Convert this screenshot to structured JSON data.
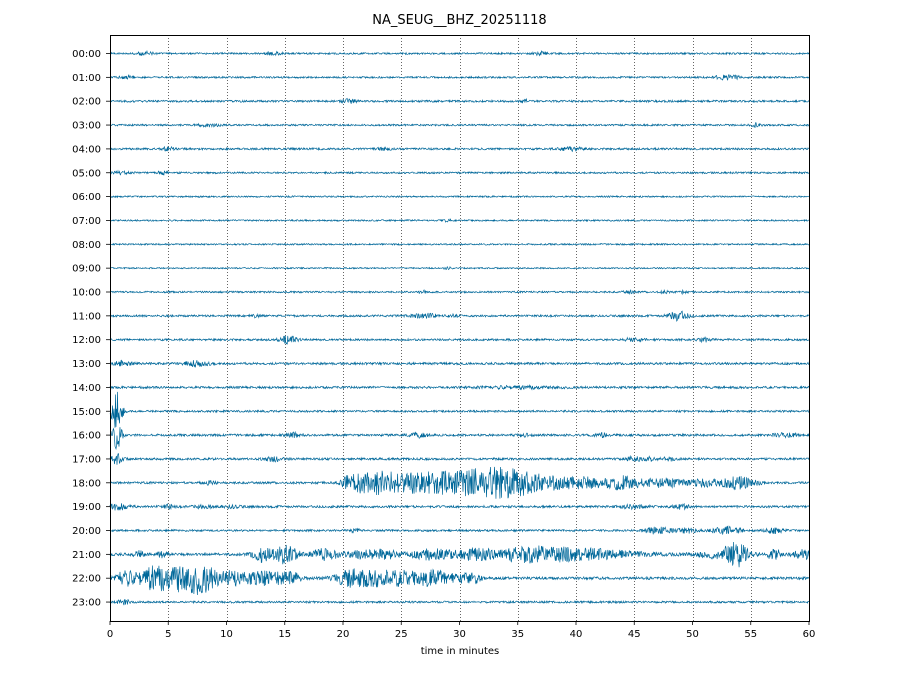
{
  "chart_data": {
    "type": "line",
    "title": "NA_SEUG__BHZ_20251118",
    "xlabel": "time in minutes",
    "ylabel": "",
    "xlim": [
      0,
      60
    ],
    "x_ticks": [
      0,
      5,
      10,
      15,
      20,
      25,
      30,
      35,
      40,
      45,
      50,
      55,
      60
    ],
    "x_tick_labels": [
      "0",
      "5",
      "10",
      "15",
      "20",
      "25",
      "30",
      "35",
      "40",
      "45",
      "50",
      "55",
      "60"
    ],
    "y_tick_labels": [
      "00:00",
      "01:00",
      "02:00",
      "03:00",
      "04:00",
      "05:00",
      "06:00",
      "07:00",
      "08:00",
      "09:00",
      "10:00",
      "11:00",
      "12:00",
      "13:00",
      "14:00",
      "15:00",
      "16:00",
      "17:00",
      "18:00",
      "19:00",
      "20:00",
      "21:00",
      "22:00",
      "23:00"
    ],
    "grid": "vertical dotted lines at each x tick",
    "trace_color": "#00689a",
    "series": [
      {
        "hour": "00:00",
        "noise": 0.08,
        "events": [
          [
            3,
            0.5,
            0.15
          ],
          [
            14,
            0.5,
            0.12
          ],
          [
            37,
            0.4,
            0.15
          ]
        ]
      },
      {
        "hour": "01:00",
        "noise": 0.08,
        "events": [
          [
            1.5,
            0.5,
            0.12
          ],
          [
            53,
            0.8,
            0.2
          ]
        ]
      },
      {
        "hour": "02:00",
        "noise": 0.09,
        "events": [
          [
            20.5,
            0.4,
            0.2
          ],
          [
            35.5,
            0.3,
            0.15
          ]
        ]
      },
      {
        "hour": "03:00",
        "noise": 0.08,
        "events": [
          [
            8.5,
            0.6,
            0.15
          ],
          [
            55.5,
            0.3,
            0.15
          ]
        ]
      },
      {
        "hour": "04:00",
        "noise": 0.09,
        "events": [
          [
            5,
            0.4,
            0.15
          ],
          [
            23.5,
            0.4,
            0.12
          ],
          [
            39.5,
            0.6,
            0.2
          ]
        ]
      },
      {
        "hour": "05:00",
        "noise": 0.08,
        "events": [
          [
            1,
            0.5,
            0.12
          ],
          [
            4.5,
            0.3,
            0.15
          ]
        ]
      },
      {
        "hour": "06:00",
        "noise": 0.07,
        "events": []
      },
      {
        "hour": "07:00",
        "noise": 0.07,
        "events": [
          [
            29,
            0.3,
            0.1
          ]
        ]
      },
      {
        "hour": "08:00",
        "noise": 0.07,
        "events": []
      },
      {
        "hour": "09:00",
        "noise": 0.06,
        "events": [
          [
            29,
            0.2,
            0.1
          ]
        ]
      },
      {
        "hour": "10:00",
        "noise": 0.08,
        "events": [
          [
            27,
            0.3,
            0.12
          ],
          [
            44.5,
            0.3,
            0.12
          ],
          [
            47.5,
            0.3,
            0.1
          ],
          [
            49,
            0.3,
            0.12
          ]
        ]
      },
      {
        "hour": "11:00",
        "noise": 0.09,
        "events": [
          [
            12.5,
            0.3,
            0.1
          ],
          [
            27,
            0.8,
            0.2
          ],
          [
            29.5,
            0.3,
            0.1
          ],
          [
            48.8,
            0.6,
            0.4
          ]
        ]
      },
      {
        "hour": "12:00",
        "noise": 0.09,
        "events": [
          [
            15.3,
            0.5,
            0.35
          ],
          [
            45,
            0.5,
            0.2
          ],
          [
            51,
            0.4,
            0.2
          ]
        ]
      },
      {
        "hour": "13:00",
        "noise": 0.1,
        "events": [
          [
            1,
            0.6,
            0.2
          ],
          [
            7.5,
            0.7,
            0.25
          ]
        ]
      },
      {
        "hour": "14:00",
        "noise": 0.1,
        "events": [
          [
            35,
            2.5,
            0.1
          ]
        ]
      },
      {
        "hour": "15:00",
        "noise": 0.09,
        "events": [
          [
            0.6,
            0.3,
            2.0
          ]
        ]
      },
      {
        "hour": "16:00",
        "noise": 0.1,
        "events": [
          [
            0.6,
            0.3,
            1.2
          ],
          [
            15.8,
            0.4,
            0.2
          ],
          [
            26.5,
            0.5,
            0.2
          ],
          [
            35.5,
            0.4,
            0.12
          ],
          [
            42,
            0.4,
            0.2
          ],
          [
            58,
            0.8,
            0.15
          ]
        ]
      },
      {
        "hour": "17:00",
        "noise": 0.1,
        "events": [
          [
            0.6,
            0.3,
            0.5
          ],
          [
            14,
            0.5,
            0.2
          ],
          [
            45,
            0.5,
            0.2
          ],
          [
            46.5,
            0.3,
            0.2
          ],
          [
            48,
            0.4,
            0.15
          ]
        ]
      },
      {
        "hour": "18:00",
        "noise": 0.1,
        "events": [
          [
            8.5,
            0.4,
            0.15
          ],
          [
            20.2,
            0.3,
            0.3
          ],
          [
            21,
            0.5,
            0.4
          ],
          [
            22.5,
            1.2,
            0.7
          ],
          [
            24.5,
            1.8,
            0.6
          ],
          [
            26.5,
            0.8,
            0.35
          ],
          [
            29,
            2.0,
            0.9
          ],
          [
            32,
            1.5,
            0.75
          ],
          [
            34.3,
            1.4,
            0.95
          ],
          [
            37.5,
            2.0,
            0.6
          ],
          [
            41,
            1.0,
            0.35
          ],
          [
            44,
            1.1,
            0.6
          ],
          [
            47.5,
            1.2,
            0.4
          ],
          [
            51,
            1.0,
            0.3
          ],
          [
            54,
            1.0,
            0.55
          ]
        ]
      },
      {
        "hour": "19:00",
        "noise": 0.1,
        "events": [
          [
            0.8,
            0.6,
            0.3
          ],
          [
            5,
            0.4,
            0.15
          ],
          [
            8,
            0.6,
            0.15
          ],
          [
            10.5,
            0.5,
            0.12
          ],
          [
            45,
            0.8,
            0.15
          ],
          [
            49,
            0.5,
            0.2
          ]
        ]
      },
      {
        "hour": "20:00",
        "noise": 0.09,
        "events": [
          [
            21,
            0.3,
            0.15
          ],
          [
            47,
            0.8,
            0.3
          ],
          [
            49.5,
            0.6,
            0.2
          ],
          [
            53,
            0.8,
            0.35
          ],
          [
            57,
            0.5,
            0.25
          ]
        ]
      },
      {
        "hour": "21:00",
        "noise": 0.12,
        "events": [
          [
            2.5,
            0.3,
            0.3
          ],
          [
            4.5,
            0.3,
            0.25
          ],
          [
            13,
            0.5,
            0.6
          ],
          [
            15,
            0.8,
            0.8
          ],
          [
            18.5,
            0.8,
            0.5
          ],
          [
            21.5,
            0.8,
            0.3
          ],
          [
            23.5,
            0.8,
            0.45
          ],
          [
            27.5,
            1.2,
            0.45
          ],
          [
            31,
            1.2,
            0.4
          ],
          [
            36,
            2.5,
            0.65
          ],
          [
            41.5,
            3.0,
            0.4
          ],
          [
            52.5,
            1.5,
            0.4
          ],
          [
            53.8,
            0.6,
            0.9
          ],
          [
            57,
            0.4,
            0.5
          ],
          [
            59.5,
            0.6,
            0.4
          ]
        ]
      },
      {
        "hour": "22:00",
        "noise": 0.12,
        "events": [
          [
            1.2,
            0.5,
            0.7
          ],
          [
            3.5,
            1.0,
            0.9
          ],
          [
            6,
            1.2,
            1.1
          ],
          [
            8,
            0.8,
            1.1
          ],
          [
            10.5,
            1.0,
            0.6
          ],
          [
            13.5,
            1.2,
            0.6
          ],
          [
            15.5,
            0.6,
            0.45
          ],
          [
            20.5,
            0.8,
            0.5
          ],
          [
            22.5,
            1.5,
            0.6
          ],
          [
            25.5,
            1.5,
            0.55
          ],
          [
            28,
            1.0,
            0.55
          ],
          [
            30.5,
            0.8,
            0.35
          ],
          [
            31.2,
            0.4,
            0.3
          ]
        ]
      },
      {
        "hour": "23:00",
        "noise": 0.09,
        "events": [
          [
            1.2,
            0.4,
            0.2
          ]
        ]
      }
    ]
  }
}
